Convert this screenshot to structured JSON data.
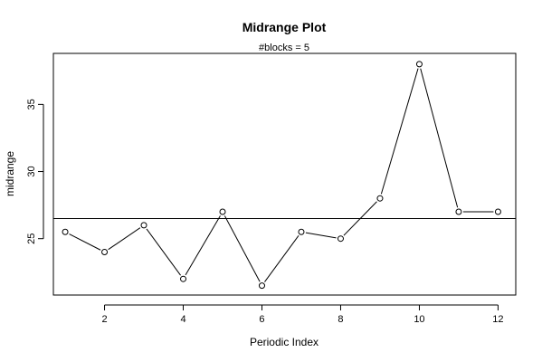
{
  "chart_data": {
    "type": "line",
    "title": "Midrange Plot",
    "subtitle": "#blocks =  5",
    "xlabel": "Periodic Index",
    "ylabel": "midrange",
    "xlim": [
      0.7,
      12.45
    ],
    "ylim": [
      20.8,
      38.8
    ],
    "xticks": [
      2,
      4,
      6,
      8,
      10,
      12
    ],
    "yticks": [
      25,
      30,
      35
    ],
    "series": [
      {
        "x": [
          1,
          2,
          3,
          4,
          5,
          6,
          7,
          8,
          9,
          10,
          11,
          12
        ],
        "values": [
          25.5,
          24,
          26,
          22,
          27,
          21.5,
          25.5,
          25,
          28,
          38,
          27,
          27
        ],
        "marker": "open-circle",
        "line": "line-with-gaps"
      }
    ],
    "reference_line": {
      "type": "horizontal",
      "value": 26.5
    },
    "grid": false,
    "legend": "none",
    "colors": {
      "line": "#000000",
      "marker": "#000000",
      "background": "#ffffff"
    }
  }
}
